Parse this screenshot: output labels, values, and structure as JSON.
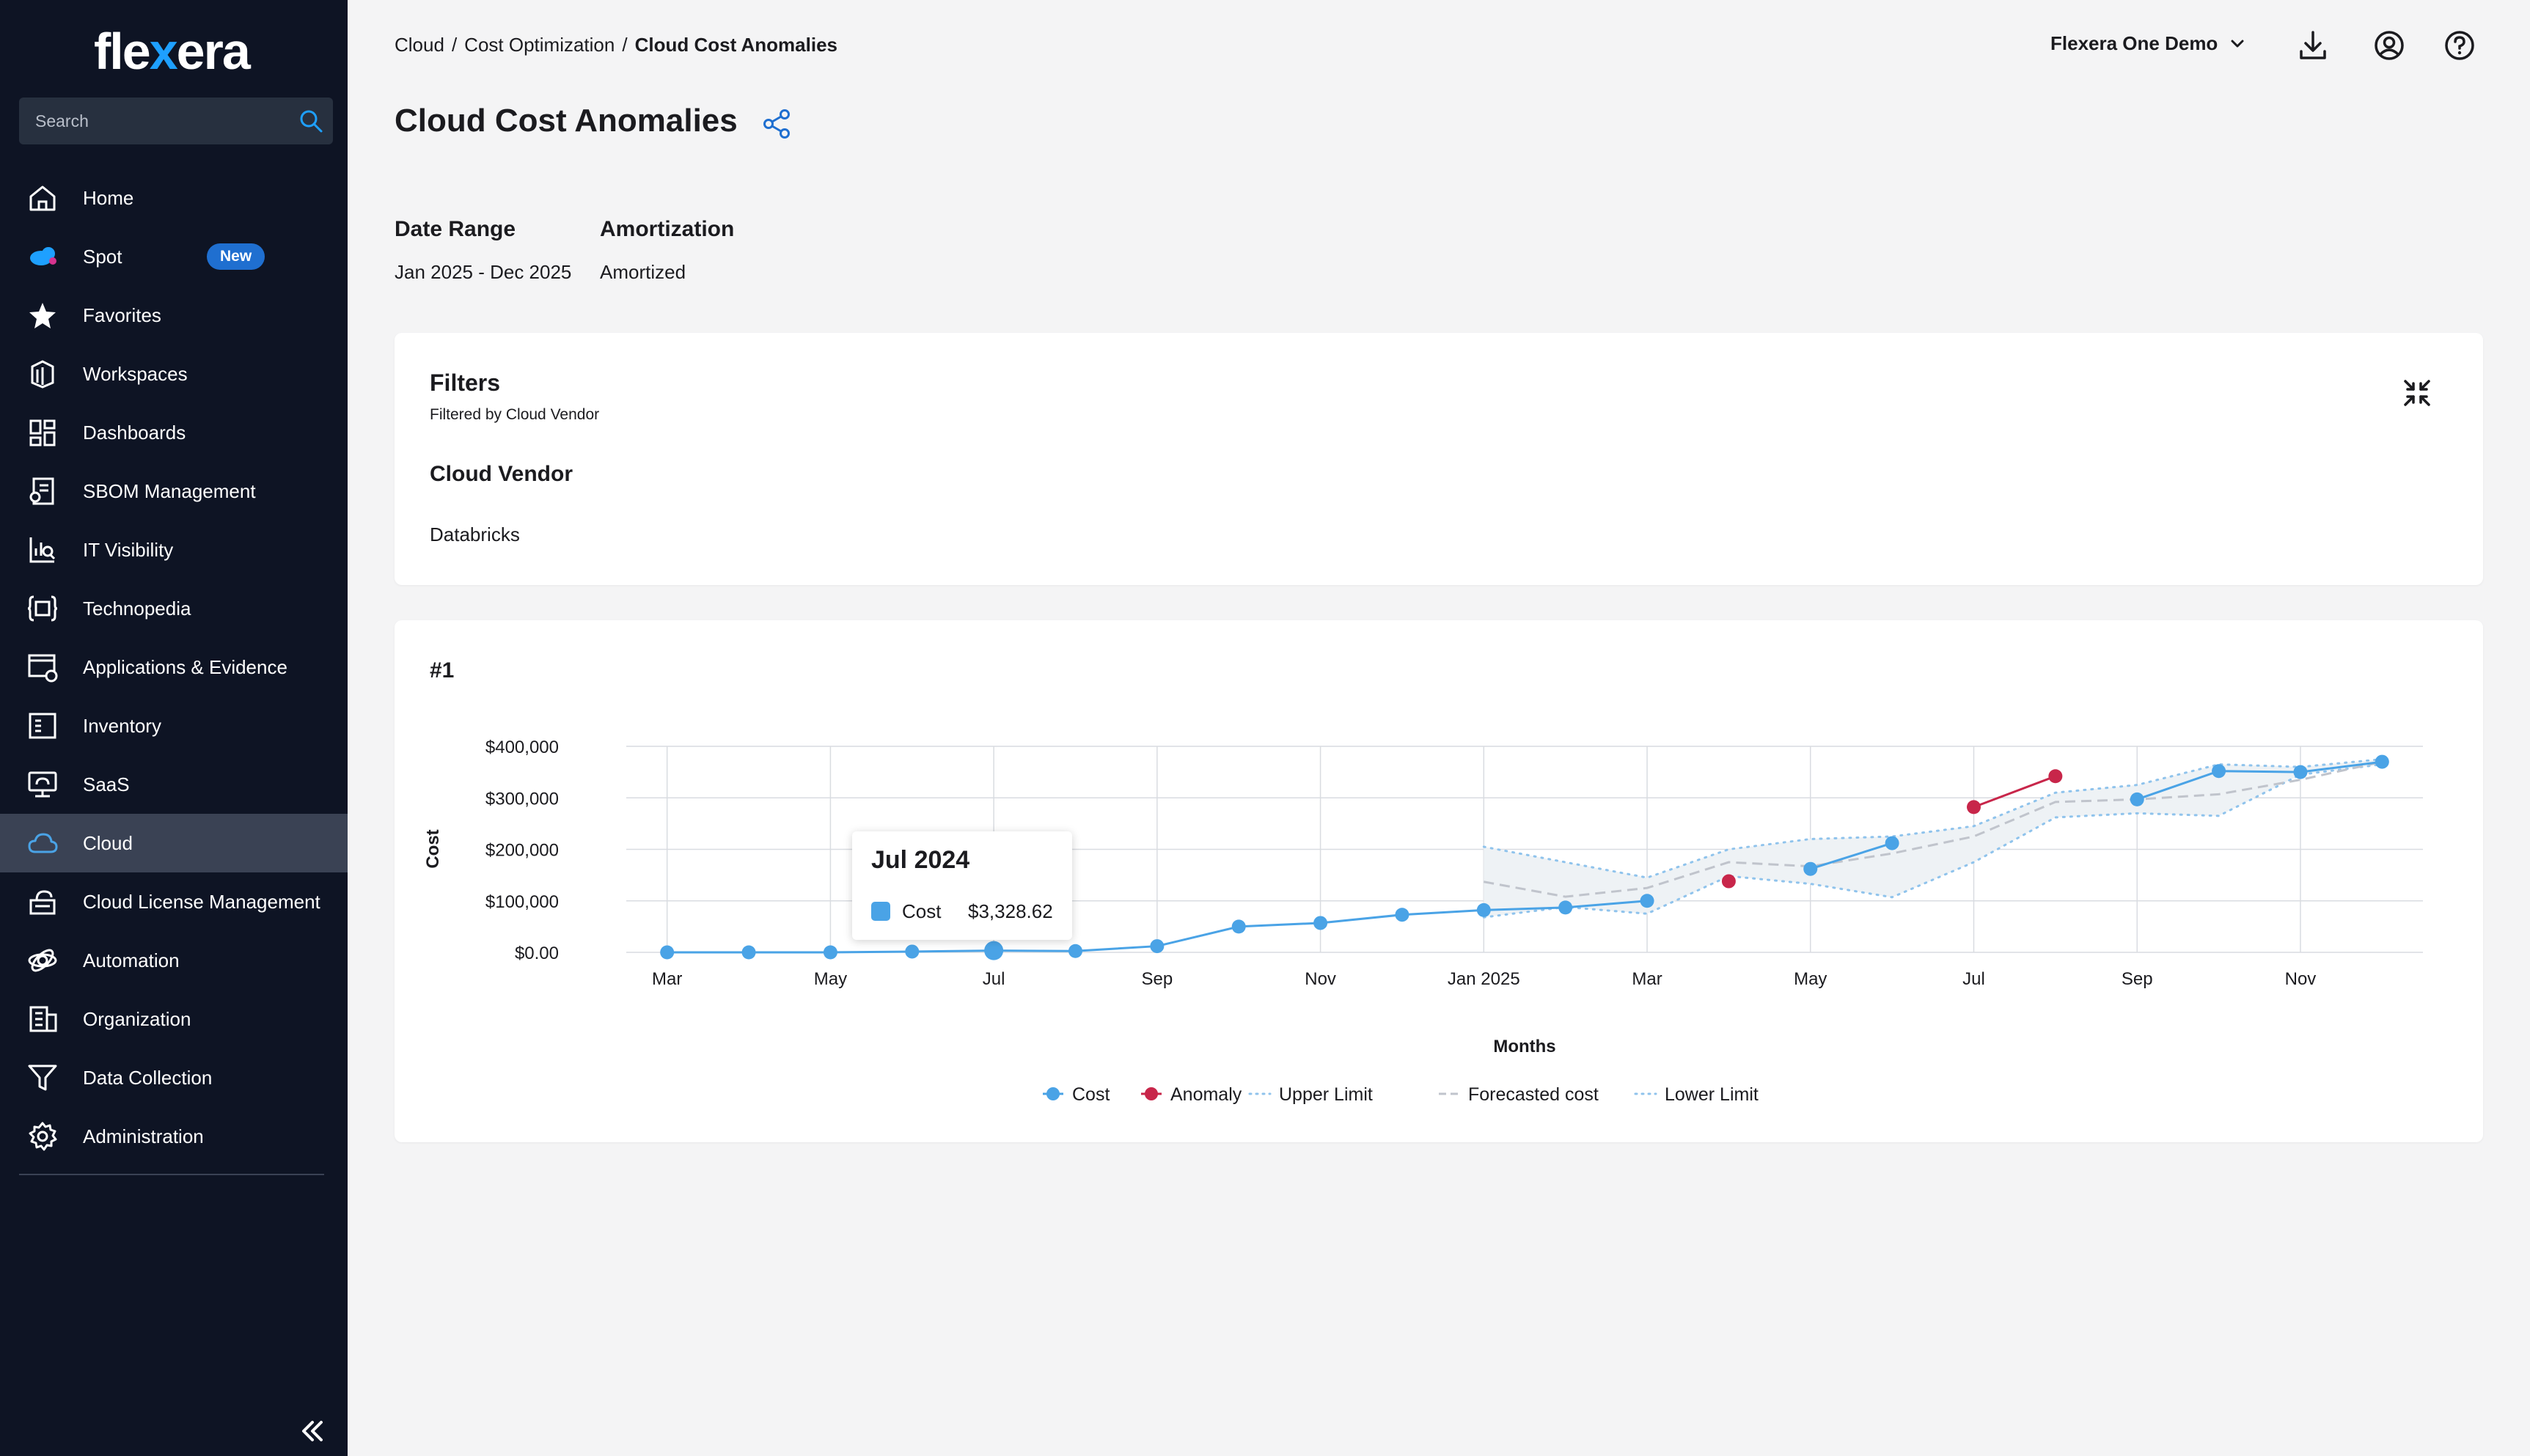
{
  "sidebar": {
    "logo_prefix": "fle",
    "logo_x": "x",
    "logo_suffix": "era",
    "search_placeholder": "Search",
    "items": [
      {
        "label": "Home",
        "icon": "home-icon"
      },
      {
        "label": "Spot",
        "icon": "spot-icon",
        "badge": "New"
      },
      {
        "label": "Favorites",
        "icon": "star-icon"
      },
      {
        "label": "Workspaces",
        "icon": "workspaces-icon"
      },
      {
        "label": "Dashboards",
        "icon": "dashboards-icon"
      },
      {
        "label": "SBOM Management",
        "icon": "sbom-icon"
      },
      {
        "label": "IT Visibility",
        "icon": "it-visibility-icon"
      },
      {
        "label": "Technopedia",
        "icon": "technopedia-icon"
      },
      {
        "label": "Applications & Evidence",
        "icon": "applications-icon"
      },
      {
        "label": "Inventory",
        "icon": "inventory-icon"
      },
      {
        "label": "SaaS",
        "icon": "saas-icon"
      },
      {
        "label": "Cloud",
        "icon": "cloud-icon",
        "active": true
      },
      {
        "label": "Cloud License Management",
        "icon": "license-icon"
      },
      {
        "label": "Automation",
        "icon": "automation-icon"
      },
      {
        "label": "Organization",
        "icon": "organization-icon"
      },
      {
        "label": "Data Collection",
        "icon": "data-collection-icon"
      },
      {
        "label": "Administration",
        "icon": "gear-icon"
      }
    ]
  },
  "header": {
    "breadcrumb": [
      "Cloud",
      "Cost Optimization",
      "Cloud Cost Anomalies"
    ],
    "breadcrumb_sep": "/",
    "tenant": "Flexera One Demo",
    "title": "Cloud Cost Anomalies"
  },
  "meta": {
    "date_range_label": "Date Range",
    "date_range_value": "Jan 2025 - Dec 2025",
    "amortization_label": "Amortization",
    "amortization_value": "Amortized"
  },
  "filters": {
    "title": "Filters",
    "subtitle": "Filtered by Cloud Vendor",
    "vendor_label": "Cloud Vendor",
    "vendor_value": "Databricks"
  },
  "chart_card": {
    "number": "#1"
  },
  "tooltip": {
    "title": "Jul 2024",
    "series": "Cost",
    "value": "$3,328.62"
  },
  "colors": {
    "cost": "#4aa3e6",
    "anomaly": "#c8264a",
    "limits": "#8fc3ec",
    "forecast": "#c0c4cc",
    "active_nav": "#3a4254",
    "sidebar_bg": "#0e1424"
  },
  "chart_data": {
    "type": "line",
    "xlabel": "Months",
    "ylabel": "Cost",
    "ylim": [
      0,
      400000
    ],
    "y_ticks": [
      0,
      100000,
      200000,
      300000,
      400000
    ],
    "y_tick_labels": [
      "$0.00",
      "$100,000",
      "$200,000",
      "$300,000",
      "$400,000"
    ],
    "x_months": [
      "Mar 2024",
      "Apr 2024",
      "May 2024",
      "Jun 2024",
      "Jul 2024",
      "Aug 2024",
      "Sep 2024",
      "Oct 2024",
      "Nov 2024",
      "Dec 2024",
      "Jan 2025",
      "Feb 2025",
      "Mar 2025",
      "Apr 2025",
      "May 2025",
      "Jun 2025",
      "Jul 2025",
      "Aug 2025",
      "Sep 2025",
      "Oct 2025",
      "Nov 2025",
      "Dec 2025"
    ],
    "x_tick_labels": [
      "Mar",
      "",
      "May",
      "",
      "Jul",
      "",
      "Sep",
      "",
      "Nov",
      "",
      "Jan 2025",
      "",
      "Mar",
      "",
      "May",
      "",
      "Jul",
      "",
      "Sep",
      "",
      "Nov",
      ""
    ],
    "legend": [
      "Cost",
      "Anomaly",
      "Upper Limit",
      "Forecasted cost",
      "Lower Limit"
    ],
    "legend_position": "bottom",
    "series": [
      {
        "name": "Cost",
        "values": [
          0,
          0,
          0,
          1500,
          3328.62,
          2500,
          12000,
          50000,
          57000,
          73000,
          82000,
          87000,
          100000,
          null,
          162000,
          212000,
          null,
          null,
          297000,
          352000,
          350000,
          370000
        ]
      },
      {
        "name": "Anomaly",
        "values": [
          null,
          null,
          null,
          null,
          null,
          null,
          null,
          null,
          null,
          null,
          null,
          null,
          null,
          138000,
          null,
          null,
          282000,
          342000,
          null,
          null,
          null,
          null
        ]
      },
      {
        "name": "Upper Limit",
        "values": [
          null,
          null,
          null,
          null,
          null,
          null,
          null,
          null,
          null,
          null,
          205000,
          175000,
          145000,
          200000,
          220000,
          225000,
          245000,
          310000,
          325000,
          365000,
          360000,
          375000
        ]
      },
      {
        "name": "Forecasted cost",
        "values": [
          null,
          null,
          null,
          null,
          null,
          null,
          null,
          null,
          null,
          null,
          137000,
          108000,
          125000,
          175000,
          167000,
          192000,
          225000,
          292000,
          297000,
          307000,
          335000,
          370000
        ]
      },
      {
        "name": "Lower Limit",
        "values": [
          null,
          null,
          null,
          null,
          null,
          null,
          null,
          null,
          null,
          null,
          68000,
          88000,
          75000,
          148000,
          133000,
          107000,
          175000,
          262000,
          270000,
          265000,
          345000,
          365000
        ]
      }
    ]
  }
}
